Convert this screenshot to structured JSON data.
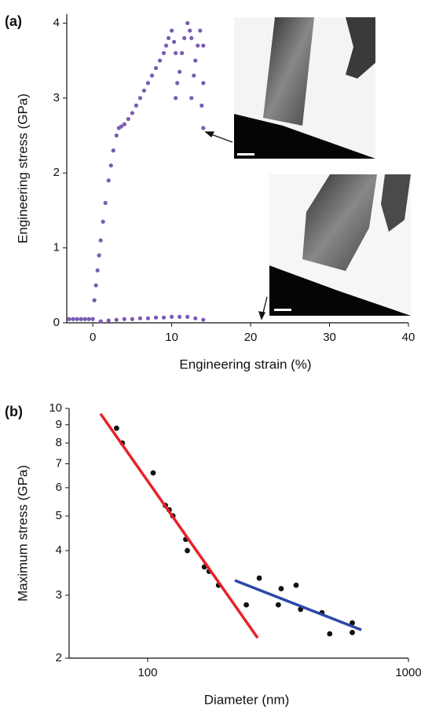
{
  "chart_data": [
    {
      "type": "scatter",
      "panel": "(a)",
      "xlabel": "Engineering strain (%)",
      "ylabel": "Engineering stress (GPa)",
      "xlim": [
        -3.3,
        40
      ],
      "ylim": [
        0,
        4.12
      ],
      "xticks": [
        0,
        10,
        20,
        30,
        40
      ],
      "yticks": [
        0,
        1,
        2,
        3,
        4
      ],
      "series": [
        {
          "color": "#7b5cb3",
          "x": [
            -3,
            -2.5,
            -2,
            -1.5,
            -1,
            -0.5,
            0,
            0.2,
            0.4,
            0.6,
            0.8,
            1,
            1.3,
            1.6,
            2,
            2.3,
            2.6,
            3,
            3.3,
            3.6,
            4,
            4.5,
            5,
            5.5,
            6,
            6.5,
            7,
            7.5,
            8,
            8.5,
            9,
            9.3,
            9.6,
            10,
            10.3,
            10.5,
            10.5,
            10.7,
            11,
            11.3,
            11.6,
            12,
            12.3,
            12.5,
            12.5,
            12.8,
            13,
            13.3,
            13.6,
            14,
            14,
            14,
            13.8,
            1,
            2,
            3,
            4,
            5,
            6,
            7,
            8,
            9,
            10,
            11,
            12,
            13,
            14
          ],
          "values": [
            0.05,
            0.05,
            0.05,
            0.05,
            0.05,
            0.05,
            0.05,
            0.3,
            0.5,
            0.7,
            0.9,
            1.1,
            1.35,
            1.6,
            1.9,
            2.1,
            2.3,
            2.5,
            2.6,
            2.62,
            2.65,
            2.72,
            2.8,
            2.9,
            3.0,
            3.1,
            3.2,
            3.3,
            3.4,
            3.5,
            3.6,
            3.7,
            3.8,
            3.9,
            3.75,
            3.6,
            3.0,
            3.2,
            3.35,
            3.6,
            3.8,
            4.0,
            3.9,
            3.8,
            3.0,
            3.3,
            3.5,
            3.7,
            3.9,
            3.7,
            3.2,
            2.6,
            2.9,
            0.02,
            0.03,
            0.04,
            0.05,
            0.05,
            0.06,
            0.06,
            0.07,
            0.07,
            0.08,
            0.08,
            0.08,
            0.06,
            0.04
          ]
        }
      ]
    },
    {
      "type": "scatter",
      "panel": "(b)",
      "xlabel": "Diameter (nm)",
      "ylabel": "Maximum stress (GPa)",
      "xlog": true,
      "ylog": true,
      "xlim": [
        50,
        1000
      ],
      "ylim": [
        2,
        10
      ],
      "xticks": [
        100,
        1000
      ],
      "yticks": [
        2,
        3,
        4,
        5,
        6,
        7,
        8,
        9,
        10
      ],
      "series": [
        {
          "color": "#111111",
          "x": [
            76,
            80,
            105,
            117,
            121,
            125,
            140,
            142,
            165,
            172,
            187,
            239,
            268,
            317,
            325,
            371,
            386,
            466,
            499,
            609,
            609
          ],
          "values": [
            8.8,
            8.0,
            6.6,
            5.35,
            5.2,
            5.0,
            4.3,
            4.0,
            3.6,
            3.5,
            3.2,
            2.82,
            3.35,
            2.82,
            3.13,
            3.2,
            2.74,
            2.68,
            2.34,
            2.51,
            2.36
          ]
        }
      ],
      "fits": [
        {
          "color": "#e8202a",
          "x": [
            66,
            264
          ],
          "values": [
            9.66,
            2.28
          ]
        },
        {
          "color": "#2b47a8",
          "x": [
            216,
            660
          ],
          "values": [
            3.3,
            2.4
          ]
        }
      ]
    }
  ]
}
